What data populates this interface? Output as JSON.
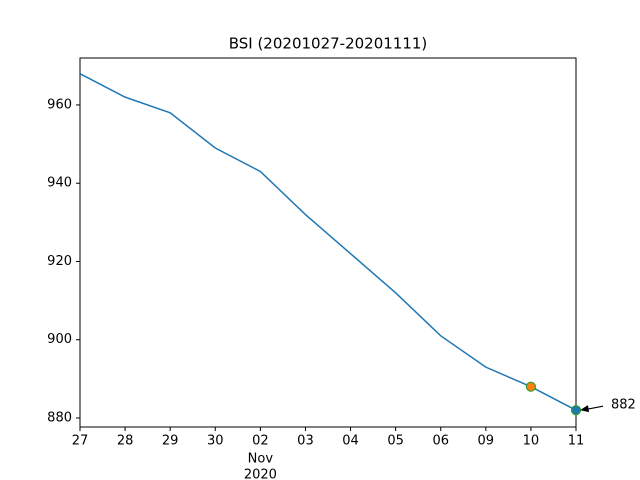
{
  "chart_data": {
    "type": "line",
    "title": "BSI (20201027-20201111)",
    "categories": [
      "27",
      "28",
      "29",
      "30",
      "02",
      "03",
      "04",
      "05",
      "06",
      "09",
      "10",
      "11"
    ],
    "x_sublabels": {
      "index": 4,
      "lines": [
        "Nov",
        "2020"
      ]
    },
    "series": [
      {
        "color": "#1f77b4",
        "values": [
          968,
          962,
          958,
          949,
          943,
          932,
          922,
          912,
          901,
          893,
          888,
          882
        ]
      }
    ],
    "ylim": [
      877.7,
      972
    ],
    "yticks": [
      880,
      900,
      920,
      940,
      960
    ],
    "grid": false,
    "markers": [
      {
        "index": 10,
        "color": "#ff7f0e",
        "edge": "#2ca02c"
      },
      {
        "index": 11,
        "color": "#1f77b4",
        "edge": "#2ca02c"
      }
    ],
    "annotation": {
      "index": 11,
      "text": "882"
    }
  }
}
